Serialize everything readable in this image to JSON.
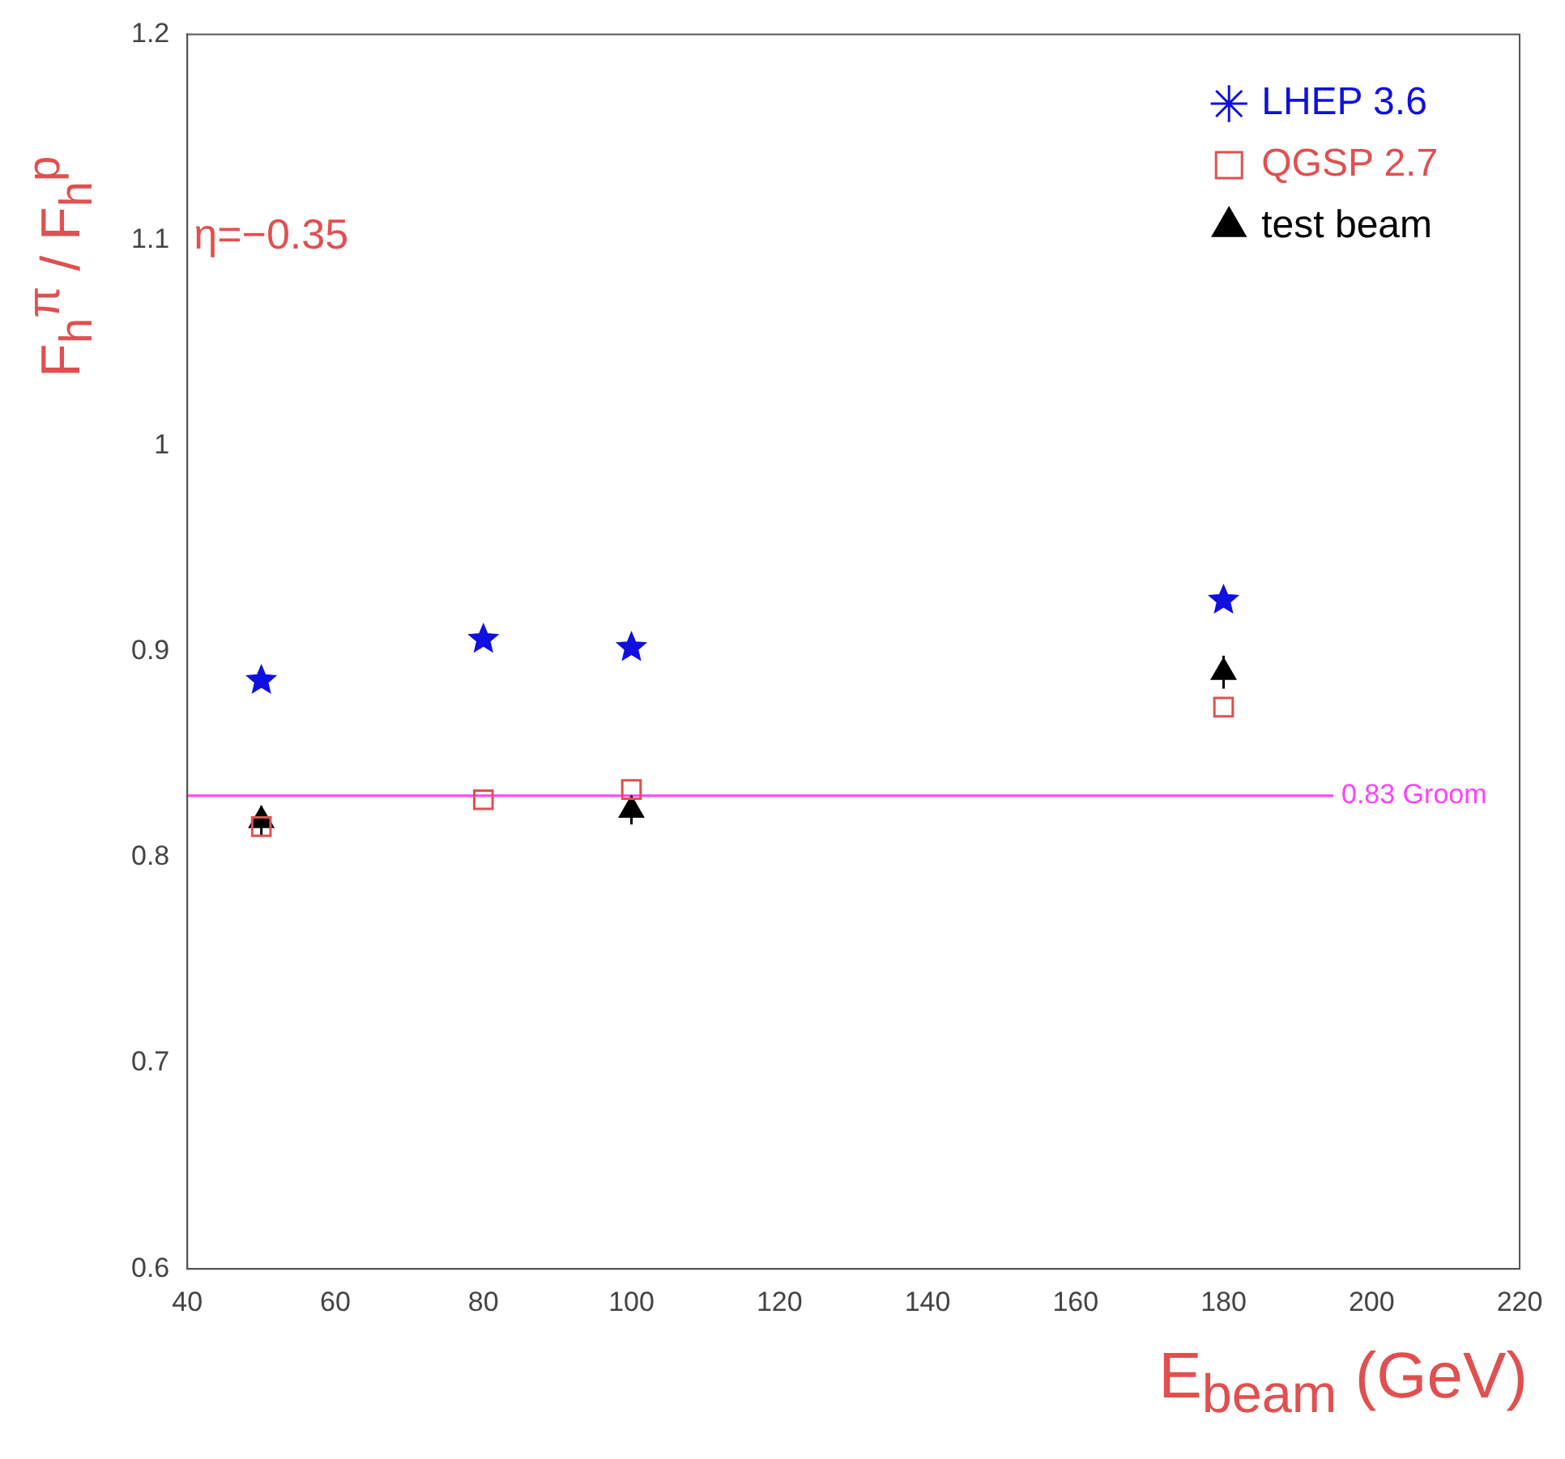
{
  "chart_data": {
    "type": "scatter",
    "xlabel": "E$_{beam}$ (GeV)",
    "ylabel": "F$_{h}$$^{π}$ / F$_{h}$$^{p}$",
    "annotations": [
      "η=−0.35"
    ],
    "xlim": [
      40,
      220
    ],
    "xticks": [
      40,
      60,
      80,
      100,
      120,
      140,
      160,
      180,
      200,
      220
    ],
    "ylim": [
      0.6,
      1.2
    ],
    "yticks": [
      0.6,
      0.7,
      0.8,
      0.9,
      1,
      1.1,
      1.2
    ],
    "grid": false,
    "legend": "top right",
    "series": [
      {
        "name": "LHEP 3.6",
        "color": "#1010e0",
        "marker": "star",
        "x": [
          50,
          80,
          100,
          180
        ],
        "values": [
          0.886,
          0.906,
          0.902,
          0.925
        ]
      },
      {
        "name": "QGSP 2.7",
        "color": "#e05050",
        "marker": "square",
        "x": [
          50,
          80,
          100,
          180
        ],
        "values": [
          0.815,
          0.828,
          0.833,
          0.873
        ]
      },
      {
        "name": "test beam",
        "color": "#000000",
        "marker": "triangle",
        "x": [
          50,
          100,
          180
        ],
        "values": [
          0.818,
          0.823,
          0.89
        ],
        "errors": [
          0.007,
          0.007,
          0.008
        ]
      }
    ],
    "ref_lines": [
      {
        "axis": "y",
        "value": 0.83,
        "label": "0.83 Groom",
        "color": "#ff40ff"
      }
    ]
  }
}
